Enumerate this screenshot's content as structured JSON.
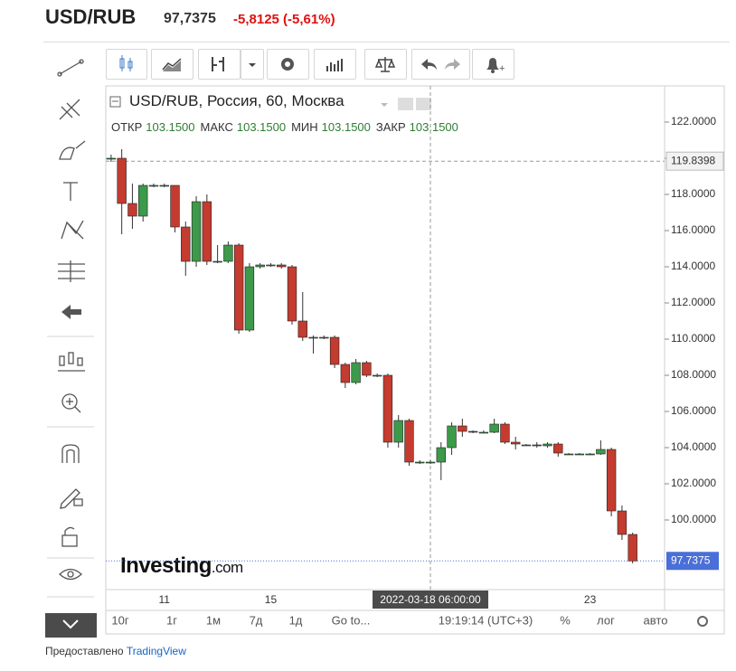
{
  "header": {
    "symbol": "USD/RUB",
    "price": "97,7375",
    "change": "-5,8125 (-5,61%)"
  },
  "chart_data": {
    "type": "candlestick",
    "title": "USD/RUB, Россия, 60, Москва",
    "ohlc_legend": [
      {
        "label": "ОТКР",
        "value": "103.1500"
      },
      {
        "label": "МАКС",
        "value": "103.1500"
      },
      {
        "label": "МИН",
        "value": "103.1500"
      },
      {
        "label": "ЗАКР",
        "value": "103.1500"
      }
    ],
    "categories": [
      null,
      null,
      null,
      null,
      null,
      "11",
      null,
      null,
      null,
      null,
      null,
      null,
      null,
      null,
      null,
      "15",
      null,
      null,
      null,
      null,
      null,
      null,
      null,
      null,
      null,
      null,
      null,
      null,
      null,
      null,
      "2022-03-18 06:00:00",
      null,
      null,
      null,
      null,
      null,
      null,
      null,
      null,
      null,
      null,
      null,
      null,
      null,
      null,
      "23",
      null,
      null,
      null,
      null
    ],
    "open": [
      120,
      120,
      117.5,
      116.8,
      118.5,
      118.5,
      118.5,
      116.2,
      114.3,
      117.6,
      114.3,
      114.3,
      115.2,
      110.5,
      114.0,
      114.1,
      114.1,
      114.0,
      111.0,
      110.1,
      110.1,
      110.1,
      108.6,
      107.6,
      108.7,
      108,
      108,
      104.3,
      105.5,
      103.2,
      103.2,
      103.2,
      104.0,
      105.2,
      104.9,
      104.85,
      104.85,
      105.3,
      104.3,
      104.15,
      104.15,
      104.1,
      104.2,
      103.65,
      103.65,
      103.65,
      103.65,
      103.9,
      100.5,
      99.2
    ],
    "high": [
      120.2,
      120.5,
      118.6,
      118.6,
      118.6,
      118.6,
      118.5,
      116.5,
      117.9,
      118.0,
      115.2,
      115.4,
      115.3,
      114.2,
      114.2,
      114.2,
      114.2,
      114.1,
      112.6,
      110.2,
      110.2,
      110.2,
      108.7,
      108.9,
      108.8,
      108.1,
      108.1,
      105.8,
      105.6,
      103.3,
      103.3,
      104.3,
      105.4,
      105.6,
      104.95,
      104.95,
      105.6,
      105.4,
      104.6,
      104.2,
      104.3,
      104.3,
      104.3,
      103.7,
      103.7,
      103.7,
      104.4,
      104.0,
      100.8,
      99.3
    ],
    "low": [
      119.8,
      115.8,
      116.1,
      116.5,
      118.4,
      118.4,
      115.9,
      113.5,
      114.0,
      114.1,
      114.2,
      114.2,
      110.3,
      110.4,
      113.9,
      114.0,
      113.9,
      110.8,
      109.9,
      109.2,
      110.0,
      108.4,
      107.3,
      107.5,
      107.9,
      107.9,
      104.0,
      104.0,
      103.0,
      103.1,
      103.1,
      102.2,
      103.6,
      104.6,
      104.8,
      104.8,
      104.8,
      104.2,
      103.9,
      104.1,
      104.0,
      104.0,
      103.5,
      103.6,
      103.6,
      103.6,
      103.6,
      100.2,
      98.9,
      97.6
    ],
    "close": [
      120,
      117.5,
      116.8,
      118.5,
      118.5,
      118.5,
      116.2,
      114.3,
      117.6,
      114.3,
      114.3,
      115.2,
      110.5,
      114.0,
      114.1,
      114.1,
      114.0,
      111.0,
      110.1,
      110.1,
      110.1,
      108.6,
      107.6,
      108.7,
      108,
      108,
      104.3,
      105.5,
      103.2,
      103.2,
      103.2,
      104.0,
      105.2,
      104.9,
      104.85,
      104.85,
      105.3,
      104.3,
      104.2,
      104.15,
      104.1,
      104.2,
      103.7,
      103.65,
      103.65,
      103.65,
      103.9,
      100.5,
      99.2,
      97.7375
    ],
    "up_color": "#3c9a4a",
    "down_color": "#c43b2f",
    "ylim": [
      96.15,
      124
    ],
    "yticks": [
      {
        "value": 100,
        "label": "100.0000"
      },
      {
        "value": 102,
        "label": "102.0000"
      },
      {
        "value": 104,
        "label": "104.0000"
      },
      {
        "value": 106,
        "label": "106.0000"
      },
      {
        "value": 108,
        "label": "108.0000"
      },
      {
        "value": 110,
        "label": "110.0000"
      },
      {
        "value": 112,
        "label": "112.0000"
      },
      {
        "value": 114,
        "label": "114.0000"
      },
      {
        "value": 116,
        "label": "116.0000"
      },
      {
        "value": 118,
        "label": "118.0000"
      },
      {
        "value": 120,
        "label": "120.0000"
      },
      {
        "value": 122,
        "label": "122.0000"
      }
    ],
    "grid": false,
    "crosshair_y": 119.8398,
    "last_price": 97.7375,
    "watermark": {
      "brand": "Investing",
      "suffix": ".com"
    }
  },
  "bottom_toolbar": [
    "10г",
    "1г",
    "1м",
    "7д",
    "1д",
    "Go to...",
    "19:19:14 (UTC+3)",
    "%",
    "лог",
    "авто"
  ],
  "footer": {
    "text": "Предоставлено",
    "link": "TradingView"
  }
}
